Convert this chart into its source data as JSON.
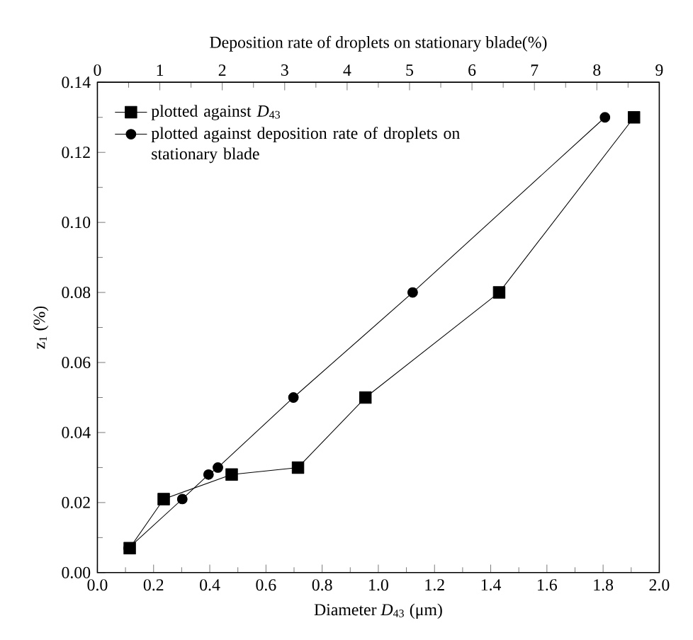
{
  "chart_data": {
    "type": "line",
    "xlabel": "Diameter *D*$_{43}$ (μm)",
    "x2label": "Deposition rate of droplets on stationary blade(%)",
    "ylabel": "z$_{1}$ (%)",
    "xlim": [
      0,
      2
    ],
    "xticks": [
      {
        "value": 0,
        "label": "0.0"
      },
      0.2,
      0.4,
      0.6,
      0.8,
      {
        "value": 1,
        "label": "1.0"
      },
      1.2,
      1.4,
      1.6,
      1.8,
      {
        "value": 2,
        "label": "2.0"
      }
    ],
    "x2lim": [
      0,
      9
    ],
    "x2ticks": [
      0,
      1,
      2,
      3,
      4,
      5,
      6,
      7,
      8,
      9
    ],
    "ylim": [
      0,
      0.14
    ],
    "yticks": [
      {
        "value": 0,
        "label": "0.00"
      },
      {
        "value": 0.02,
        "label": "0.02"
      },
      {
        "value": 0.04,
        "label": "0.04"
      },
      {
        "value": 0.06,
        "label": "0.06"
      },
      {
        "value": 0.08,
        "label": "0.08"
      },
      {
        "value": 0.1,
        "label": "0.10"
      },
      {
        "value": 0.12,
        "label": "0.12"
      },
      {
        "value": 0.14,
        "label": "0.14"
      }
    ],
    "legend": "top left",
    "line_style": "solid",
    "series": [
      {
        "name": "plotted against *D*$_{43}$",
        "color": "#000000",
        "marker": "square",
        "x": [
          0.115,
          0.236,
          0.478,
          0.714,
          0.954,
          1.43,
          1.91
        ],
        "values": [
          0.007,
          0.021,
          0.028,
          0.03,
          0.05,
          0.08,
          0.13
        ]
      },
      {
        "name": "plotted against deposition rate of droplets on stationary blade",
        "color": "#000000",
        "marker": "circle",
        "axis": "x2",
        "x": [
          0.5,
          1.36,
          1.78,
          1.93,
          3.14,
          5.05,
          8.13
        ],
        "values": [
          0.007,
          0.021,
          0.028,
          0.03,
          0.05,
          0.08,
          0.13
        ]
      }
    ]
  }
}
